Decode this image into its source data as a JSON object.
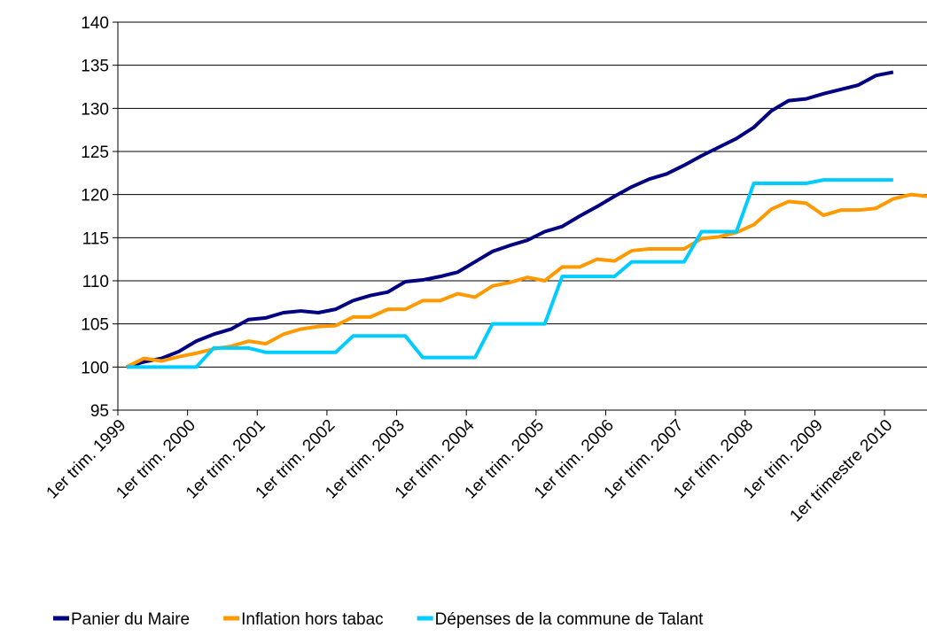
{
  "chart_data": {
    "type": "line",
    "categories": [
      "1er trim. 1999",
      null,
      null,
      null,
      "1er trim. 2000",
      null,
      null,
      null,
      "1er trim. 2001",
      null,
      null,
      null,
      "1er trim. 2002",
      null,
      null,
      null,
      "1er trim. 2003",
      null,
      null,
      null,
      "1er trim. 2004",
      null,
      null,
      null,
      "1er trim. 2005",
      null,
      null,
      null,
      "1er trim. 2006",
      null,
      null,
      null,
      "1er trim. 2007",
      null,
      null,
      null,
      "1er trim. 2008",
      null,
      null,
      null,
      "1er trim. 2009",
      null,
      null,
      null,
      "1er trimestre 2010",
      null,
      null
    ],
    "series": [
      {
        "name": "Panier du Maire",
        "color": "#000080",
        "values": [
          100,
          100.6,
          101.0,
          101.8,
          103.0,
          103.8,
          104.4,
          105.5,
          105.7,
          106.3,
          106.5,
          106.3,
          106.7,
          107.7,
          108.3,
          108.7,
          109.9,
          110.1,
          110.5,
          111.0,
          112.2,
          113.4,
          114.1,
          114.7,
          115.7,
          116.3,
          117.5,
          118.6,
          119.8,
          120.9,
          121.8,
          122.4,
          123.4,
          124.5,
          125.5,
          126.5,
          127.8,
          129.7,
          130.9,
          131.1,
          131.7,
          132.2,
          132.7,
          133.8,
          134.2,
          null,
          null
        ]
      },
      {
        "name": "Inflation hors tabac",
        "color": "#ff9900",
        "values": [
          100,
          101.0,
          100.7,
          101.2,
          101.6,
          102.1,
          102.4,
          103.0,
          102.7,
          103.8,
          104.4,
          104.7,
          104.8,
          105.8,
          105.8,
          106.7,
          106.7,
          107.7,
          107.7,
          108.5,
          108.1,
          109.4,
          109.8,
          110.4,
          110.0,
          111.6,
          111.6,
          112.5,
          112.3,
          113.5,
          113.7,
          113.7,
          113.7,
          114.9,
          115.1,
          115.6,
          116.5,
          118.3,
          119.2,
          119.0,
          117.6,
          118.2,
          118.2,
          118.4,
          119.5,
          120.0,
          119.8
        ]
      },
      {
        "name": "Dépenses de la commune de Talant",
        "color": "#00ccff",
        "values": [
          100,
          100,
          100,
          100,
          100,
          102.2,
          102.2,
          102.2,
          101.7,
          101.7,
          101.7,
          101.7,
          101.7,
          103.6,
          103.6,
          103.6,
          103.6,
          101.1,
          101.1,
          101.1,
          101.1,
          105.0,
          105.0,
          105.0,
          105.0,
          110.5,
          110.5,
          110.5,
          110.5,
          112.2,
          112.2,
          112.2,
          112.2,
          115.7,
          115.7,
          115.7,
          121.3,
          121.3,
          121.3,
          121.3,
          121.7,
          121.7,
          121.7,
          121.7,
          121.7,
          null,
          null
        ]
      }
    ],
    "ylim": [
      95,
      140
    ],
    "yticks": [
      95,
      100,
      105,
      110,
      115,
      120,
      125,
      130,
      135,
      140
    ],
    "grid": true,
    "legend": "bottom"
  }
}
